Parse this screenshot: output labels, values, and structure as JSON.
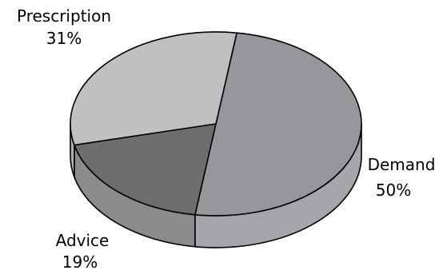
{
  "chart_data": {
    "type": "pie",
    "style": "3d-exploded-none",
    "categories": [
      "Demand",
      "Advice",
      "Prescription"
    ],
    "values": [
      50,
      19,
      31
    ],
    "labels": {
      "Demand": {
        "name": "Demand",
        "percent": "50%"
      },
      "Advice": {
        "name": "Advice",
        "percent": "19%"
      },
      "Prescription": {
        "name": "Prescription",
        "percent": "31%"
      }
    },
    "colors": {
      "Demand": "#97979b",
      "Advice": "#6d6d6f",
      "Prescription": "#c0c0c2"
    },
    "side_colors": {
      "Demand": "#a6a6aa",
      "Advice": "#8b8b8d",
      "Prescription": "#b0b0b2"
    },
    "legend": "none",
    "title": ""
  }
}
